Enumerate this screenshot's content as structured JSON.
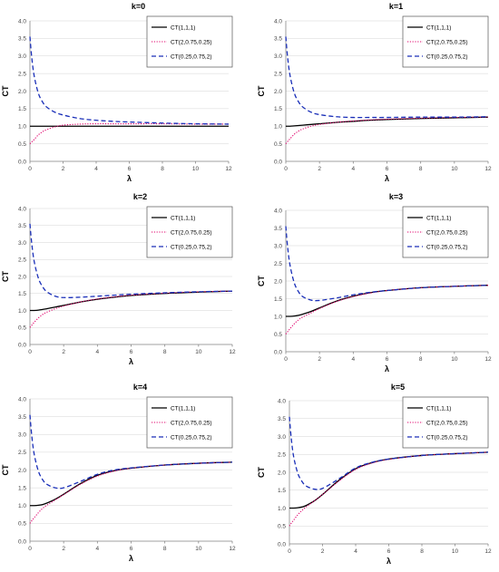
{
  "chart_data": [
    {
      "type": "line",
      "title": "k=0",
      "xlabel": "λ",
      "ylabel": "CT",
      "xlim": [
        0,
        12
      ],
      "ylim": [
        0,
        4
      ],
      "xticks": [
        "0",
        "2",
        "4",
        "6",
        "8",
        "10",
        "12"
      ],
      "yticks": [
        "0.0",
        "0.5",
        "1.0",
        "1.5",
        "2.0",
        "2.5",
        "3.0",
        "3.5",
        "4.0"
      ],
      "x": [
        0,
        0.1,
        0.25,
        0.5,
        0.75,
        1,
        1.5,
        2,
        3,
        4,
        5,
        6,
        8,
        10,
        12
      ],
      "series": [
        {
          "name": "CT(1,1,1)",
          "color": "#000000",
          "dash": "solid",
          "values": [
            1.0,
            1.0,
            1.0,
            1.0,
            1.0,
            1.0,
            1.0,
            1.0,
            1.0,
            1.0,
            1.0,
            1.0,
            1.0,
            1.0,
            1.0
          ]
        },
        {
          "name": "CT(2,0.75,0.25)",
          "color": "#e0006b",
          "dash": "dotted",
          "values": [
            0.5,
            0.55,
            0.62,
            0.75,
            0.84,
            0.9,
            0.98,
            1.03,
            1.06,
            1.07,
            1.07,
            1.07,
            1.07,
            1.06,
            1.06
          ]
        },
        {
          "name": "CT(0.25,0.75,2)",
          "color": "#1a2fb8",
          "dash": "dashed",
          "values": [
            3.55,
            3.0,
            2.45,
            1.95,
            1.7,
            1.55,
            1.4,
            1.32,
            1.22,
            1.17,
            1.14,
            1.12,
            1.09,
            1.07,
            1.06
          ]
        }
      ]
    },
    {
      "type": "line",
      "title": "k=1",
      "xlabel": "λ",
      "ylabel": "CT",
      "xlim": [
        0,
        12
      ],
      "ylim": [
        0,
        4
      ],
      "xticks": [
        "0",
        "2",
        "4",
        "6",
        "8",
        "10",
        "12"
      ],
      "yticks": [
        "0.0",
        "0.5",
        "1.0",
        "1.5",
        "2.0",
        "2.5",
        "3.0",
        "3.5",
        "4.0"
      ],
      "x": [
        0,
        0.1,
        0.25,
        0.5,
        0.75,
        1,
        1.5,
        2,
        3,
        4,
        5,
        6,
        8,
        10,
        12
      ],
      "series": [
        {
          "name": "CT(1,1,1)",
          "color": "#000000",
          "dash": "solid",
          "values": [
            1.0,
            1.0,
            1.0,
            1.01,
            1.02,
            1.03,
            1.05,
            1.07,
            1.11,
            1.14,
            1.17,
            1.19,
            1.22,
            1.24,
            1.26
          ]
        },
        {
          "name": "CT(2,0.75,0.25)",
          "color": "#e0006b",
          "dash": "dotted",
          "values": [
            0.5,
            0.56,
            0.64,
            0.77,
            0.86,
            0.92,
            1.0,
            1.05,
            1.11,
            1.15,
            1.18,
            1.2,
            1.23,
            1.25,
            1.26
          ]
        },
        {
          "name": "CT(0.25,0.75,2)",
          "color": "#1a2fb8",
          "dash": "dashed",
          "values": [
            3.55,
            3.0,
            2.45,
            1.95,
            1.7,
            1.55,
            1.4,
            1.33,
            1.27,
            1.25,
            1.25,
            1.25,
            1.26,
            1.26,
            1.27
          ]
        }
      ]
    },
    {
      "type": "line",
      "title": "k=2",
      "xlabel": "λ",
      "ylabel": "CT",
      "xlim": [
        0,
        12
      ],
      "ylim": [
        0,
        4
      ],
      "xticks": [
        "0",
        "2",
        "4",
        "6",
        "8",
        "10",
        "12"
      ],
      "yticks": [
        "0.0",
        "0.5",
        "1.0",
        "1.5",
        "2.0",
        "2.5",
        "3.0",
        "3.5",
        "4.0"
      ],
      "x": [
        0,
        0.1,
        0.25,
        0.5,
        0.75,
        1,
        1.5,
        2,
        3,
        4,
        5,
        6,
        8,
        10,
        12
      ],
      "series": [
        {
          "name": "CT(1,1,1)",
          "color": "#000000",
          "dash": "solid",
          "values": [
            1.0,
            1.0,
            1.0,
            1.01,
            1.03,
            1.05,
            1.1,
            1.15,
            1.25,
            1.33,
            1.39,
            1.44,
            1.5,
            1.54,
            1.57
          ]
        },
        {
          "name": "CT(2,0.75,0.25)",
          "color": "#e0006b",
          "dash": "dotted",
          "values": [
            0.5,
            0.56,
            0.65,
            0.78,
            0.88,
            0.95,
            1.05,
            1.13,
            1.25,
            1.34,
            1.4,
            1.45,
            1.51,
            1.55,
            1.57
          ]
        },
        {
          "name": "CT(0.25,0.75,2)",
          "color": "#1a2fb8",
          "dash": "dashed",
          "values": [
            3.55,
            3.0,
            2.45,
            1.95,
            1.7,
            1.55,
            1.42,
            1.38,
            1.39,
            1.42,
            1.45,
            1.48,
            1.52,
            1.55,
            1.57
          ]
        }
      ]
    },
    {
      "type": "line",
      "title": "k=3",
      "xlabel": "λ",
      "ylabel": "CT",
      "xlim": [
        0,
        12
      ],
      "ylim": [
        0,
        4
      ],
      "xticks": [
        "0",
        "2",
        "4",
        "6",
        "8",
        "10",
        "12"
      ],
      "yticks": [
        "0.0",
        "0.5",
        "1.0",
        "1.5",
        "2.0",
        "2.5",
        "3.0",
        "3.5",
        "4.0"
      ],
      "x": [
        0,
        0.1,
        0.25,
        0.5,
        0.75,
        1,
        1.5,
        2,
        3,
        4,
        5,
        6,
        8,
        10,
        12
      ],
      "series": [
        {
          "name": "CT(1,1,1)",
          "color": "#000000",
          "dash": "solid",
          "values": [
            1.0,
            1.0,
            1.0,
            1.01,
            1.03,
            1.06,
            1.14,
            1.24,
            1.43,
            1.57,
            1.67,
            1.73,
            1.81,
            1.85,
            1.88
          ]
        },
        {
          "name": "CT(2,0.75,0.25)",
          "color": "#e0006b",
          "dash": "dotted",
          "values": [
            0.5,
            0.56,
            0.65,
            0.79,
            0.9,
            0.98,
            1.1,
            1.22,
            1.42,
            1.56,
            1.66,
            1.73,
            1.81,
            1.85,
            1.88
          ]
        },
        {
          "name": "CT(0.25,0.75,2)",
          "color": "#1a2fb8",
          "dash": "dashed",
          "values": [
            3.55,
            3.0,
            2.45,
            1.95,
            1.7,
            1.56,
            1.46,
            1.45,
            1.52,
            1.61,
            1.68,
            1.73,
            1.81,
            1.85,
            1.88
          ]
        }
      ]
    },
    {
      "type": "line",
      "title": "k=4",
      "xlabel": "λ",
      "ylabel": "CT",
      "xlim": [
        0,
        12
      ],
      "ylim": [
        0,
        4
      ],
      "xticks": [
        "0",
        "2",
        "4",
        "6",
        "8",
        "10",
        "12"
      ],
      "yticks": [
        "0.0",
        "0.5",
        "1.0",
        "1.5",
        "2.0",
        "2.5",
        "3.0",
        "3.5",
        "4.0"
      ],
      "x": [
        0,
        0.1,
        0.25,
        0.5,
        0.75,
        1,
        1.5,
        2,
        3,
        4,
        5,
        6,
        8,
        10,
        12
      ],
      "series": [
        {
          "name": "CT(1,1,1)",
          "color": "#000000",
          "dash": "solid",
          "values": [
            1.0,
            1.0,
            1.0,
            1.01,
            1.03,
            1.07,
            1.18,
            1.32,
            1.62,
            1.85,
            1.98,
            2.05,
            2.14,
            2.19,
            2.22
          ]
        },
        {
          "name": "CT(2,0.75,0.25)",
          "color": "#e0006b",
          "dash": "dotted",
          "values": [
            0.5,
            0.57,
            0.66,
            0.8,
            0.92,
            1.01,
            1.16,
            1.31,
            1.6,
            1.83,
            1.97,
            2.05,
            2.14,
            2.19,
            2.22
          ]
        },
        {
          "name": "CT(0.25,0.75,2)",
          "color": "#1a2fb8",
          "dash": "dashed",
          "values": [
            3.55,
            3.0,
            2.45,
            1.97,
            1.73,
            1.6,
            1.5,
            1.5,
            1.68,
            1.88,
            2.0,
            2.06,
            2.14,
            2.19,
            2.22
          ]
        }
      ]
    },
    {
      "type": "line",
      "title": "k=5",
      "xlabel": "λ",
      "ylabel": "CT",
      "xlim": [
        0,
        12
      ],
      "ylim": [
        0,
        4
      ],
      "xticks": [
        "0",
        "2",
        "4",
        "6",
        "8",
        "10",
        "12"
      ],
      "yticks": [
        "0.0",
        "0.5",
        "1.0",
        "1.5",
        "2.0",
        "2.5",
        "3.0",
        "3.5",
        "4.0"
      ],
      "x": [
        0,
        0.1,
        0.25,
        0.5,
        0.75,
        1,
        1.5,
        2,
        3,
        4,
        5,
        6,
        8,
        10,
        12
      ],
      "series": [
        {
          "name": "CT(1,1,1)",
          "color": "#000000",
          "dash": "solid",
          "values": [
            1.0,
            1.0,
            1.0,
            1.01,
            1.03,
            1.07,
            1.2,
            1.38,
            1.78,
            2.1,
            2.27,
            2.37,
            2.47,
            2.52,
            2.56
          ]
        },
        {
          "name": "CT(2,0.75,0.25)",
          "color": "#e0006b",
          "dash": "dotted",
          "values": [
            0.5,
            0.57,
            0.66,
            0.81,
            0.93,
            1.03,
            1.2,
            1.38,
            1.76,
            2.08,
            2.26,
            2.36,
            2.47,
            2.52,
            2.56
          ]
        },
        {
          "name": "CT(0.25,0.75,2)",
          "color": "#1a2fb8",
          "dash": "dashed",
          "values": [
            3.55,
            3.0,
            2.45,
            1.98,
            1.75,
            1.62,
            1.53,
            1.55,
            1.82,
            2.12,
            2.28,
            2.37,
            2.47,
            2.52,
            2.56
          ]
        }
      ]
    }
  ]
}
